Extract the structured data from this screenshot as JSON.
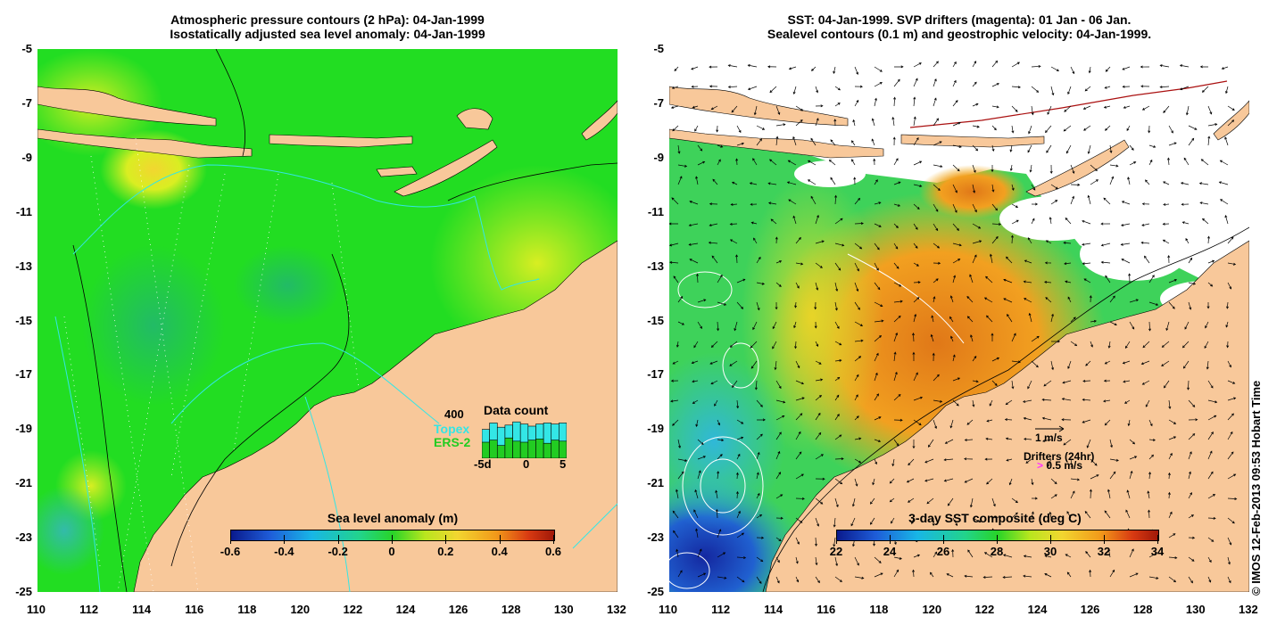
{
  "left_panel": {
    "title_line1": "Atmospheric pressure contours (2 hPa): 04-Jan-1999",
    "title_line2": "Isostatically adjusted sea level anomaly: 04-Jan-1999",
    "colorbar": {
      "label": "Sea level anomaly (m)",
      "ticks": [
        "-0.6",
        "-0.4",
        "-0.2",
        "0",
        "0.2",
        "0.4",
        "0.6"
      ]
    },
    "data_count": {
      "title": "Data count",
      "max_label": "400",
      "series": [
        {
          "name": "Topex",
          "color": "#33e6e6",
          "values": [
            270,
            330,
            290,
            310,
            340,
            320,
            300,
            320,
            330,
            320,
            330
          ]
        },
        {
          "name": "ERS-2",
          "color": "#22cc22",
          "values": [
            150,
            170,
            120,
            190,
            160,
            150,
            170,
            180,
            140,
            170,
            160
          ]
        }
      ],
      "x_ticks": [
        "-5",
        "0",
        "5"
      ],
      "x_extra": "d"
    }
  },
  "right_panel": {
    "title_line1": "SST: 04-Jan-1999. SVP drifters (magenta): 01 Jan - 06 Jan.",
    "title_line2": "Sealevel contours (0.1 m) and geostrophic velocity: 04-Jan-1999.",
    "colorbar": {
      "label": "3-day SST composite (deg C)",
      "ticks": [
        "22",
        "24",
        "26",
        "28",
        "30",
        "32",
        "34"
      ]
    },
    "legend": {
      "velocity_label": "1 m/s",
      "drifters_label": "Drifters (24hr)",
      "drifter_speed_label": "0.5 m/s",
      "drifter_color": "#ff33ff"
    }
  },
  "axes": {
    "x_ticks": [
      "110",
      "112",
      "114",
      "116",
      "118",
      "120",
      "122",
      "124",
      "126",
      "128",
      "130",
      "132"
    ],
    "y_ticks": [
      "-5",
      "-7",
      "-9",
      "-11",
      "-13",
      "-15",
      "-17",
      "-19",
      "-21",
      "-23",
      "-25"
    ]
  },
  "credit": "© IMOS 12-Feb-2013 09:53 Hobart Time",
  "colors": {
    "land": "#f8c89a",
    "sea_anomaly_base": "#22dd22",
    "no_data": "#ffffff"
  }
}
